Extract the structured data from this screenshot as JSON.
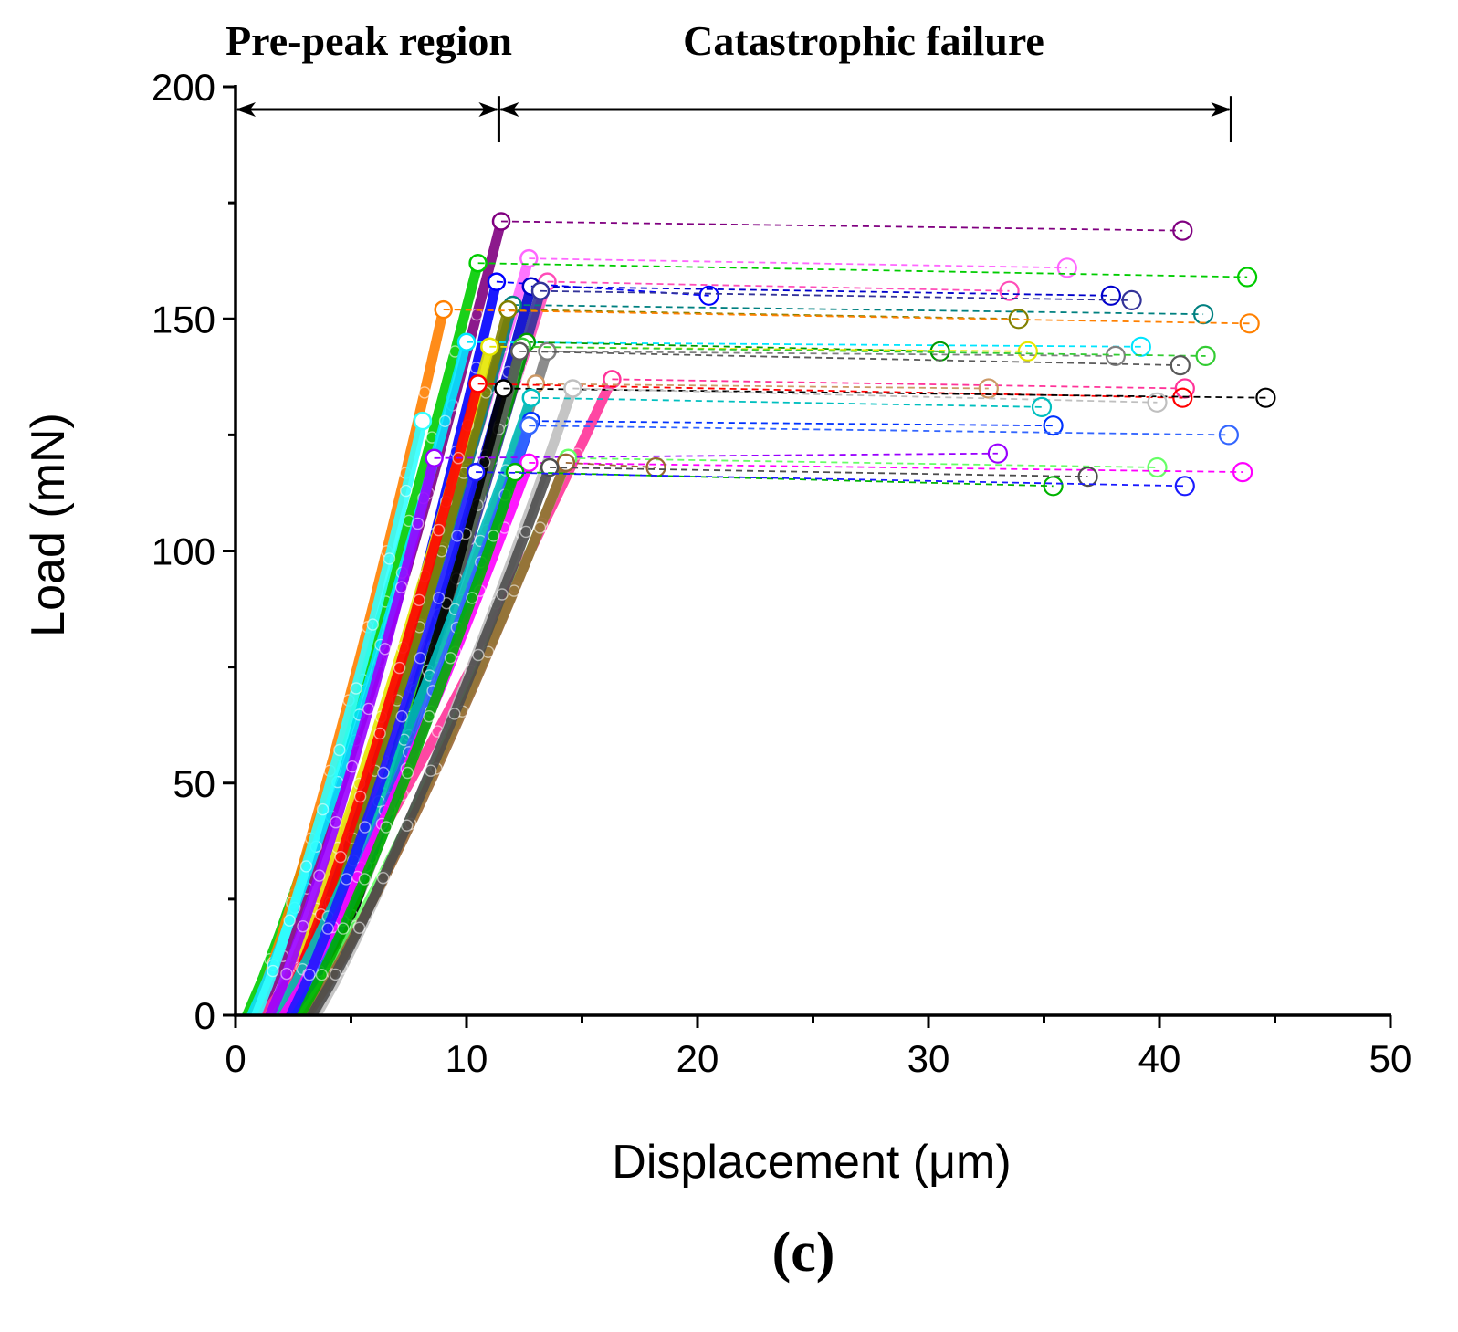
{
  "chart_data": {
    "type": "line",
    "panel_label": "(c)",
    "xlabel": "Displacement (μm)",
    "ylabel": "Load (mN)",
    "xlim": [
      0,
      50
    ],
    "ylim": [
      0,
      200
    ],
    "x_ticks": [
      "0",
      "10",
      "20",
      "30",
      "40",
      "50"
    ],
    "y_ticks": [
      "0",
      "50",
      "100",
      "150",
      "200"
    ],
    "regions": [
      {
        "label": "Pre-peak region",
        "x_start": 0,
        "x_end": 11.4
      },
      {
        "label": "Catastrophic failure",
        "x_start": 11.4,
        "x_end": 43.1
      }
    ],
    "series": [
      {
        "name": "purple",
        "color": "#800080",
        "start": 1.0,
        "peak": [
          11.5,
          171
        ],
        "end": [
          41.0,
          169
        ]
      },
      {
        "name": "magenta-light",
        "color": "#ff66ff",
        "start": 1.5,
        "peak": [
          12.7,
          163
        ],
        "end": [
          36.0,
          161
        ]
      },
      {
        "name": "green",
        "color": "#00cc00",
        "start": 0.5,
        "peak": [
          10.5,
          162
        ],
        "end": [
          43.8,
          159
        ]
      },
      {
        "name": "pink",
        "color": "#ff4db8",
        "start": 1.8,
        "peak": [
          13.5,
          158
        ],
        "end": [
          33.5,
          156
        ]
      },
      {
        "name": "blue",
        "color": "#0000ff",
        "start": 2.5,
        "peak": [
          11.3,
          158
        ],
        "end": [
          20.5,
          155
        ]
      },
      {
        "name": "navy",
        "color": "#0000cc",
        "start": 2.8,
        "peak": [
          12.8,
          157
        ],
        "end": [
          37.9,
          155
        ]
      },
      {
        "name": "navy-2",
        "color": "#333399",
        "start": 3.0,
        "peak": [
          13.2,
          156
        ],
        "end": [
          38.8,
          154
        ]
      },
      {
        "name": "teal",
        "color": "#008080",
        "start": 2.0,
        "peak": [
          12.0,
          153
        ],
        "end": [
          41.9,
          151
        ]
      },
      {
        "name": "olive",
        "color": "#808000",
        "start": 2.2,
        "peak": [
          11.8,
          152
        ],
        "end": [
          33.9,
          150
        ]
      },
      {
        "name": "orange",
        "color": "#ff8000",
        "start": 0.8,
        "peak": [
          9.0,
          152
        ],
        "end": [
          43.9,
          149
        ]
      },
      {
        "name": "cyan",
        "color": "#00e5ff",
        "start": 0.7,
        "peak": [
          10.0,
          145
        ],
        "end": [
          39.2,
          144
        ]
      },
      {
        "name": "gray",
        "color": "#808080",
        "start": 3.0,
        "peak": [
          13.5,
          143
        ],
        "end": [
          38.1,
          142
        ]
      },
      {
        "name": "dark-green",
        "color": "#009900",
        "start": 2.5,
        "peak": [
          12.6,
          145
        ],
        "end": [
          30.5,
          143
        ]
      },
      {
        "name": "yellow",
        "color": "#e6e600",
        "start": 1.6,
        "peak": [
          11.0,
          144
        ],
        "end": [
          34.3,
          143
        ]
      },
      {
        "name": "green-2",
        "color": "#33cc33",
        "start": 2.7,
        "peak": [
          12.4,
          144
        ],
        "end": [
          42.0,
          142
        ]
      },
      {
        "name": "dark-gray",
        "color": "#595959",
        "start": 3.2,
        "peak": [
          12.3,
          143
        ],
        "end": [
          40.9,
          140
        ]
      },
      {
        "name": "rose",
        "color": "#ff3399",
        "start": 1.2,
        "peak": [
          16.3,
          137
        ],
        "end": [
          41.1,
          135
        ]
      },
      {
        "name": "tan",
        "color": "#cc9966",
        "start": 2.4,
        "peak": [
          13.0,
          136
        ],
        "end": [
          32.6,
          135
        ]
      },
      {
        "name": "red",
        "color": "#ff0000",
        "start": 2.0,
        "peak": [
          10.5,
          136
        ],
        "end": [
          41.0,
          133
        ]
      },
      {
        "name": "black",
        "color": "#000000",
        "start": 3.4,
        "peak": [
          11.6,
          135
        ],
        "end": [
          44.6,
          133
        ]
      },
      {
        "name": "light-gray",
        "color": "#bfbfbf",
        "start": 3.5,
        "peak": [
          14.6,
          135
        ],
        "end": [
          39.9,
          132
        ]
      },
      {
        "name": "cyan-2",
        "color": "#00bfbf",
        "start": 1.8,
        "peak": [
          12.8,
          133
        ],
        "end": [
          34.9,
          131
        ]
      },
      {
        "name": "blue-2",
        "color": "#0033ff",
        "start": 2.6,
        "peak": [
          12.8,
          128
        ],
        "end": [
          35.4,
          127
        ]
      },
      {
        "name": "blue-3",
        "color": "#3366ff",
        "start": 2.3,
        "peak": [
          12.7,
          127
        ],
        "end": [
          43.0,
          125
        ]
      },
      {
        "name": "light-green",
        "color": "#66ff66",
        "start": 2.9,
        "peak": [
          14.4,
          120
        ],
        "end": [
          39.9,
          118
        ]
      },
      {
        "name": "violet",
        "color": "#9900ff",
        "start": 1.5,
        "peak": [
          8.6,
          120
        ],
        "end": [
          33.0,
          121
        ]
      },
      {
        "name": "magenta",
        "color": "#ff00ff",
        "start": 2.1,
        "peak": [
          12.7,
          119
        ],
        "end": [
          43.6,
          117
        ]
      },
      {
        "name": "brown",
        "color": "#996633",
        "start": 3.1,
        "peak": [
          14.3,
          119
        ],
        "end": [
          18.2,
          118
        ]
      },
      {
        "name": "dark-gray-2",
        "color": "#4d4d4d",
        "start": 3.3,
        "peak": [
          13.6,
          118
        ],
        "end": [
          36.9,
          116
        ]
      },
      {
        "name": "green-3",
        "color": "#00b300",
        "start": 2.8,
        "peak": [
          12.1,
          117
        ],
        "end": [
          35.4,
          114
        ]
      },
      {
        "name": "blue-4",
        "color": "#1a1aff",
        "start": 2.4,
        "peak": [
          10.4,
          117
        ],
        "end": [
          41.1,
          114
        ]
      },
      {
        "name": "cyan-3",
        "color": "#33ffff",
        "start": 0.9,
        "peak": [
          8.1,
          128
        ],
        "end": [
          8.1,
          128
        ]
      }
    ]
  }
}
